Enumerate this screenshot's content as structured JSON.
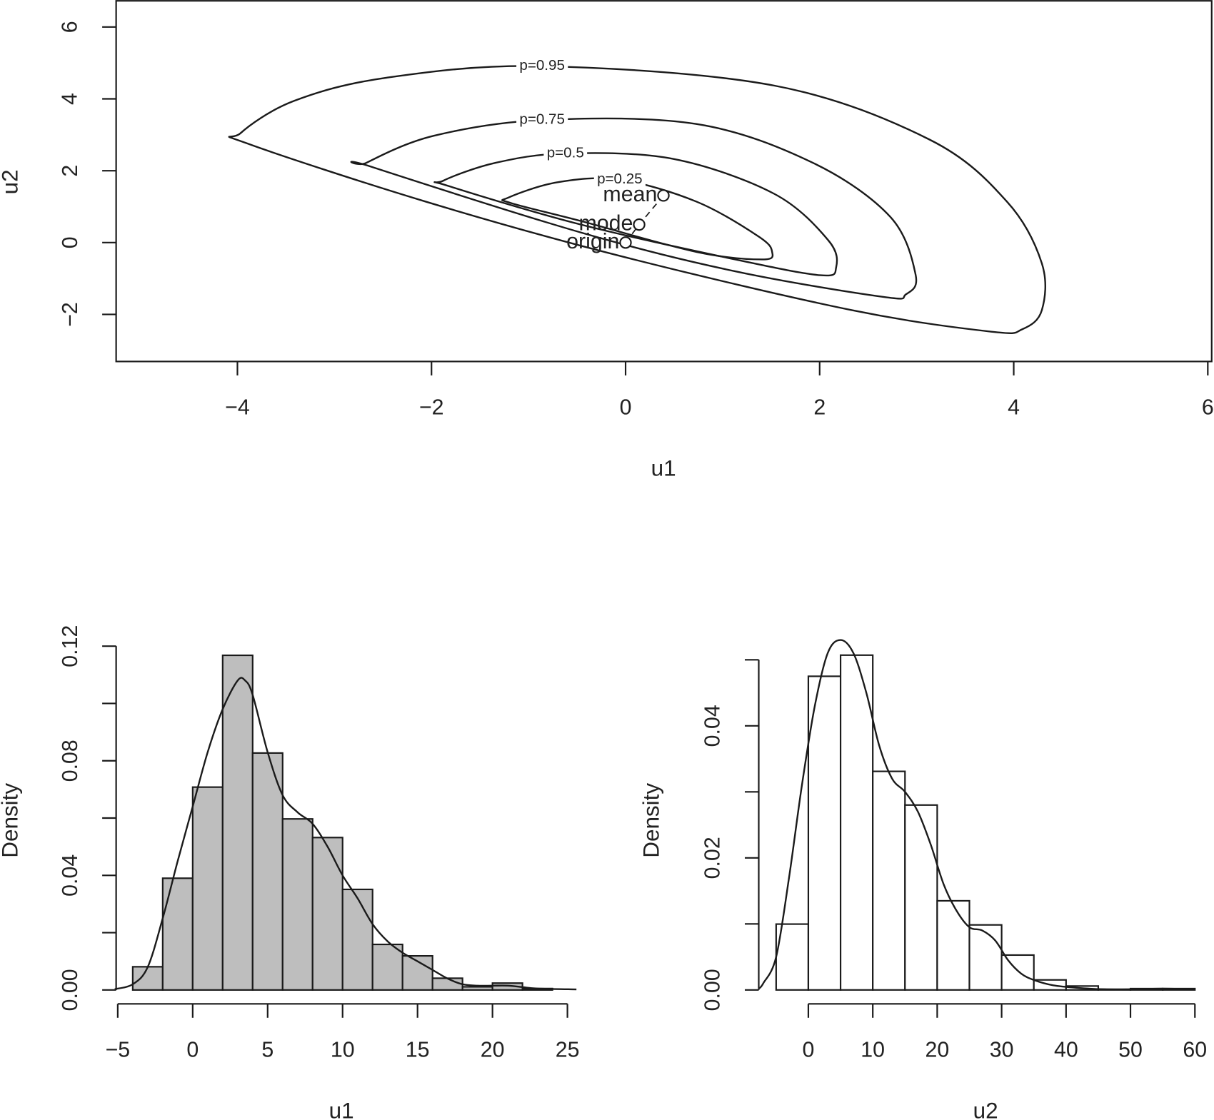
{
  "chart_data": [
    {
      "type": "contour",
      "xlabel": "u1",
      "ylabel": "u2",
      "xlim": [
        -5.25,
        6.04
      ],
      "ylim": [
        -3.31,
        6.75
      ],
      "xticks": [
        {
          "value": -4,
          "label": "−4"
        },
        {
          "value": -2,
          "label": "−2"
        },
        0,
        2,
        4,
        6
      ],
      "yticks": [
        {
          "value": -2,
          "label": "−2"
        },
        0,
        2,
        4,
        6
      ],
      "color": "#1a1a1a",
      "contours": [
        {
          "label": "p=0.95",
          "x": [
            -3.97,
            -3.42,
            -2.46,
            -0.86,
            1.53,
            3.13,
            3.93,
            4.29,
            4.29,
            4.09,
            3.77,
            2.33,
            -0.06,
            -2.06,
            -3.9
          ],
          "y": [
            3.04,
            3.94,
            4.59,
            4.91,
            4.37,
            2.87,
            1.14,
            -0.58,
            -1.88,
            -2.41,
            -2.48,
            -1.88,
            -0.37,
            1.14,
            2.76
          ]
        },
        {
          "label": "p=0.75",
          "x": [
            -2.67,
            -1.98,
            -0.86,
            0.73,
            1.93,
            2.73,
            2.99,
            2.89,
            2.65,
            1.13,
            -0.46,
            -2.62
          ],
          "y": [
            2.22,
            2.97,
            3.41,
            3.3,
            2.22,
            0.71,
            -0.91,
            -1.44,
            -1.51,
            -0.8,
            0.28,
            2.11
          ]
        },
        {
          "label": "p=0.5",
          "x": [
            -1.88,
            -1.34,
            -0.62,
            0.49,
            1.53,
            2.09,
            2.17,
            2.01,
            1.13,
            -0.46,
            -1.82
          ],
          "y": [
            1.72,
            2.22,
            2.48,
            2.33,
            1.36,
            0.06,
            -0.69,
            -0.91,
            -0.47,
            0.5,
            1.57
          ]
        },
        {
          "label": "p=0.25",
          "x": [
            -1.21,
            -0.7,
            -0.06,
            0.73,
            1.37,
            1.51,
            1.41,
            0.73,
            -0.46,
            -1.18
          ],
          "y": [
            1.25,
            1.68,
            1.75,
            1.14,
            0.17,
            -0.26,
            -0.47,
            -0.26,
            0.6,
            1.1
          ]
        }
      ],
      "points": [
        {
          "name": "mean",
          "x": 0.39,
          "y": 1.31
        },
        {
          "name": "mode",
          "x": 0.14,
          "y": 0.5
        },
        {
          "name": "origin",
          "x": 0,
          "y": 0
        }
      ]
    },
    {
      "type": "histogram",
      "xlabel": "u1",
      "ylabel": "Density",
      "xlim": [
        -6.14,
        26.4
      ],
      "ylim": [
        -0.0016,
        0.124
      ],
      "xticks": [
        {
          "value": -5,
          "label": "−5"
        },
        0,
        5,
        10,
        15,
        20,
        25
      ],
      "yticks": [
        {
          "value": 0,
          "label": "0.00"
        },
        0.04,
        0.08,
        0.12
      ],
      "yminor_ticks": [
        0.02,
        0.06,
        0.1
      ],
      "color": "#bebebe",
      "bins": [
        -4,
        -2,
        0,
        2,
        4,
        6,
        8,
        10,
        12,
        14,
        16,
        18,
        20,
        22,
        24
      ],
      "counts": [
        0.0081,
        0.039,
        0.0708,
        0.1168,
        0.0827,
        0.0597,
        0.0532,
        0.0351,
        0.0159,
        0.0119,
        0.0041,
        0.0011,
        0.0024,
        0.0005
      ],
      "density": {
        "x": [
          -5.2,
          -4,
          -3,
          -2,
          -1,
          0,
          1,
          2,
          3,
          3.5,
          4,
          5,
          6,
          7,
          8,
          9,
          10,
          11,
          12,
          13,
          14,
          15,
          16,
          17,
          18,
          19,
          20,
          21,
          22,
          23,
          25.6
        ],
        "y": [
          0.0003,
          0.002,
          0.008,
          0.025,
          0.045,
          0.064,
          0.083,
          0.098,
          0.108,
          0.108,
          0.103,
          0.083,
          0.068,
          0.062,
          0.058,
          0.05,
          0.04,
          0.032,
          0.023,
          0.017,
          0.013,
          0.01,
          0.007,
          0.004,
          0.002,
          0.0015,
          0.0015,
          0.0015,
          0.001,
          0.0005,
          0.0002
        ]
      }
    },
    {
      "type": "histogram",
      "xlabel": "u2",
      "ylabel": "Density",
      "xlim": [
        -8.3,
        60.8
      ],
      "ylim": [
        -0.0007,
        0.0538
      ],
      "xticks": [
        0,
        10,
        20,
        30,
        40,
        50,
        60
      ],
      "yticks": [
        {
          "value": 0,
          "label": "0.00"
        },
        0.02,
        0.04
      ],
      "yminor_ticks": [
        0.01,
        0.03,
        0.05
      ],
      "color": "#ffffff",
      "bins": [
        -5,
        0,
        5,
        10,
        15,
        20,
        25,
        30,
        35,
        40,
        45,
        50,
        55,
        60
      ],
      "counts": [
        0.00997,
        0.0475,
        0.0507,
        0.0331,
        0.028,
        0.0135,
        0.00985,
        0.00528,
        0.00152,
        0.00059,
        0.0001,
        0.0002,
        0.0002
      ],
      "density": {
        "x": [
          -7.7,
          -7,
          -5,
          -3,
          -1,
          1,
          3,
          5,
          7,
          9,
          11,
          13,
          15,
          17,
          19,
          21,
          23,
          25,
          27,
          29,
          31,
          33,
          35,
          38,
          42,
          46,
          50,
          55,
          60
        ],
        "y": [
          0.0002,
          0.001,
          0.005,
          0.017,
          0.031,
          0.043,
          0.051,
          0.053,
          0.051,
          0.045,
          0.037,
          0.032,
          0.03,
          0.027,
          0.022,
          0.016,
          0.012,
          0.0095,
          0.009,
          0.0075,
          0.0045,
          0.0025,
          0.0015,
          0.0007,
          0.0003,
          0.0001,
          0.0001,
          0.0002,
          0.0001
        ]
      }
    }
  ]
}
